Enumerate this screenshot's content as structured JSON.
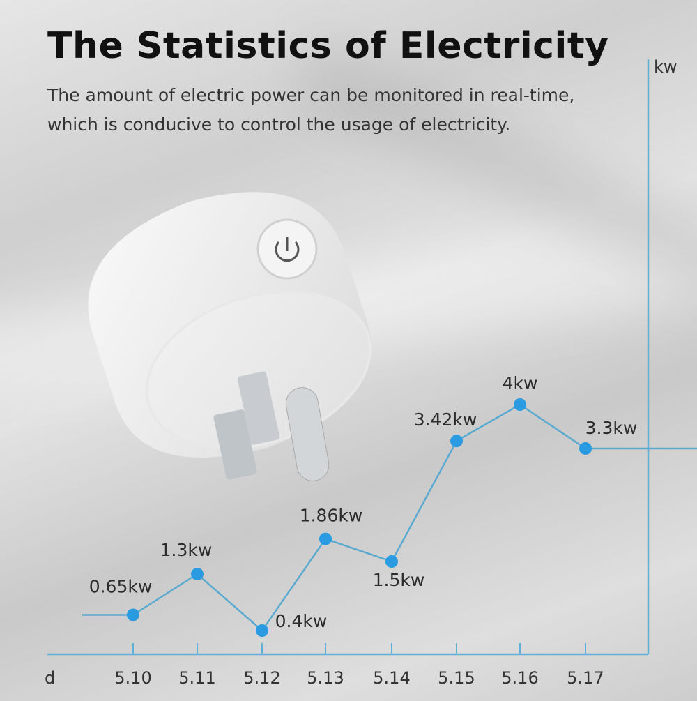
{
  "header": {
    "title": "The Statistics of Electricity",
    "subtitle_line1": "The amount of electric power can be monitored in real-time,",
    "subtitle_line2": "which is conducive to control the usage of electricity."
  },
  "colors": {
    "line": "#5aaad0",
    "point": "#2a9be0",
    "axis": "#5fb0d6"
  },
  "chart_data": {
    "type": "line",
    "title": "",
    "xlabel": "d",
    "ylabel": "kw",
    "categories": [
      "5.10",
      "5.11",
      "5.12",
      "5.13",
      "5.14",
      "5.15",
      "5.16",
      "5.17"
    ],
    "values": [
      0.65,
      1.3,
      0.4,
      1.86,
      1.5,
      3.42,
      4,
      3.3
    ],
    "data_labels": [
      "0.65kw",
      "1.3kw",
      "0.4kw",
      "1.86kw",
      "1.5kw",
      "3.42kw",
      "4kw",
      "3.3kw"
    ],
    "grid": false,
    "legend": "none"
  }
}
